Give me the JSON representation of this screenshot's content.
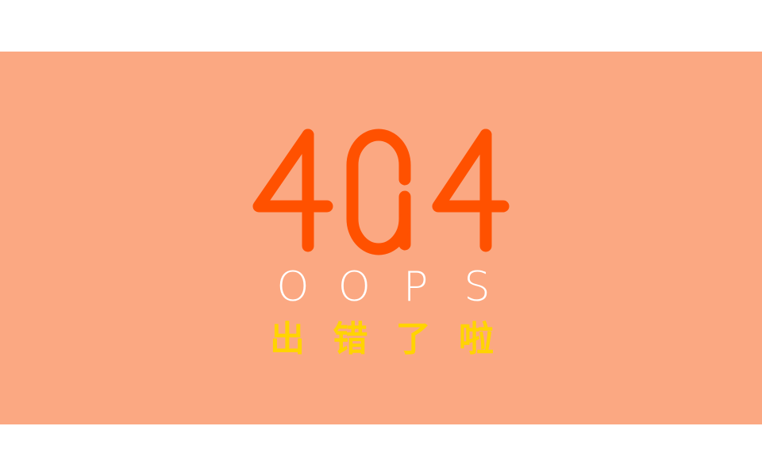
{
  "error": {
    "code": "404",
    "code_chars": [
      "4",
      "0",
      "4"
    ],
    "headline_letters": [
      "O",
      "O",
      "P",
      "S"
    ],
    "message_chars": [
      "出",
      "错",
      "了",
      "啦"
    ]
  },
  "colors": {
    "banner_bg": "#FBA882",
    "code": "#FF5100",
    "headline": "#FFFFFF",
    "message": "#FFD400",
    "page_bg": "#FFFFFF"
  }
}
